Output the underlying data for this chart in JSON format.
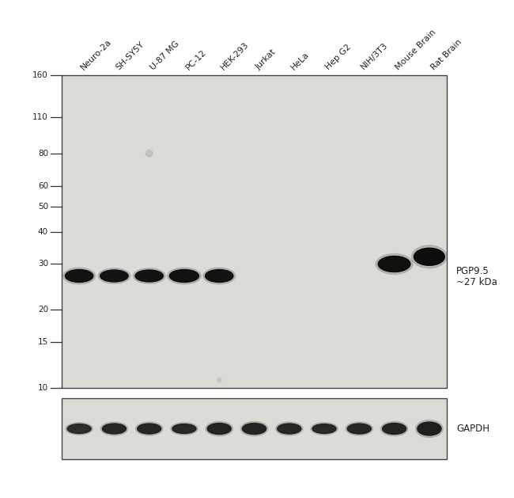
{
  "figure_width": 6.5,
  "figure_height": 6.29,
  "panel_bg": "#dcdbd5",
  "border_color": "#444444",
  "sample_labels": [
    "Neuro-2a",
    "SH-SY5Y",
    "U-87 MG",
    "PC-12",
    "HEK-293",
    "Jurkat",
    "HeLa",
    "Hep G2",
    "NIH/3T3",
    "Mouse Brain",
    "Rat Brain"
  ],
  "mw_markers": [
    160,
    110,
    80,
    60,
    50,
    40,
    30,
    20,
    15,
    10
  ],
  "annotation_pgp95_line1": "PGP9.5",
  "annotation_pgp95_line2": "~27 kDa",
  "annotation_gapdh": "GAPDH",
  "text_color": "#222222",
  "tick_color": "#333333",
  "band_dark": "#0a0a0a",
  "band_mid": "#1a1a1a"
}
